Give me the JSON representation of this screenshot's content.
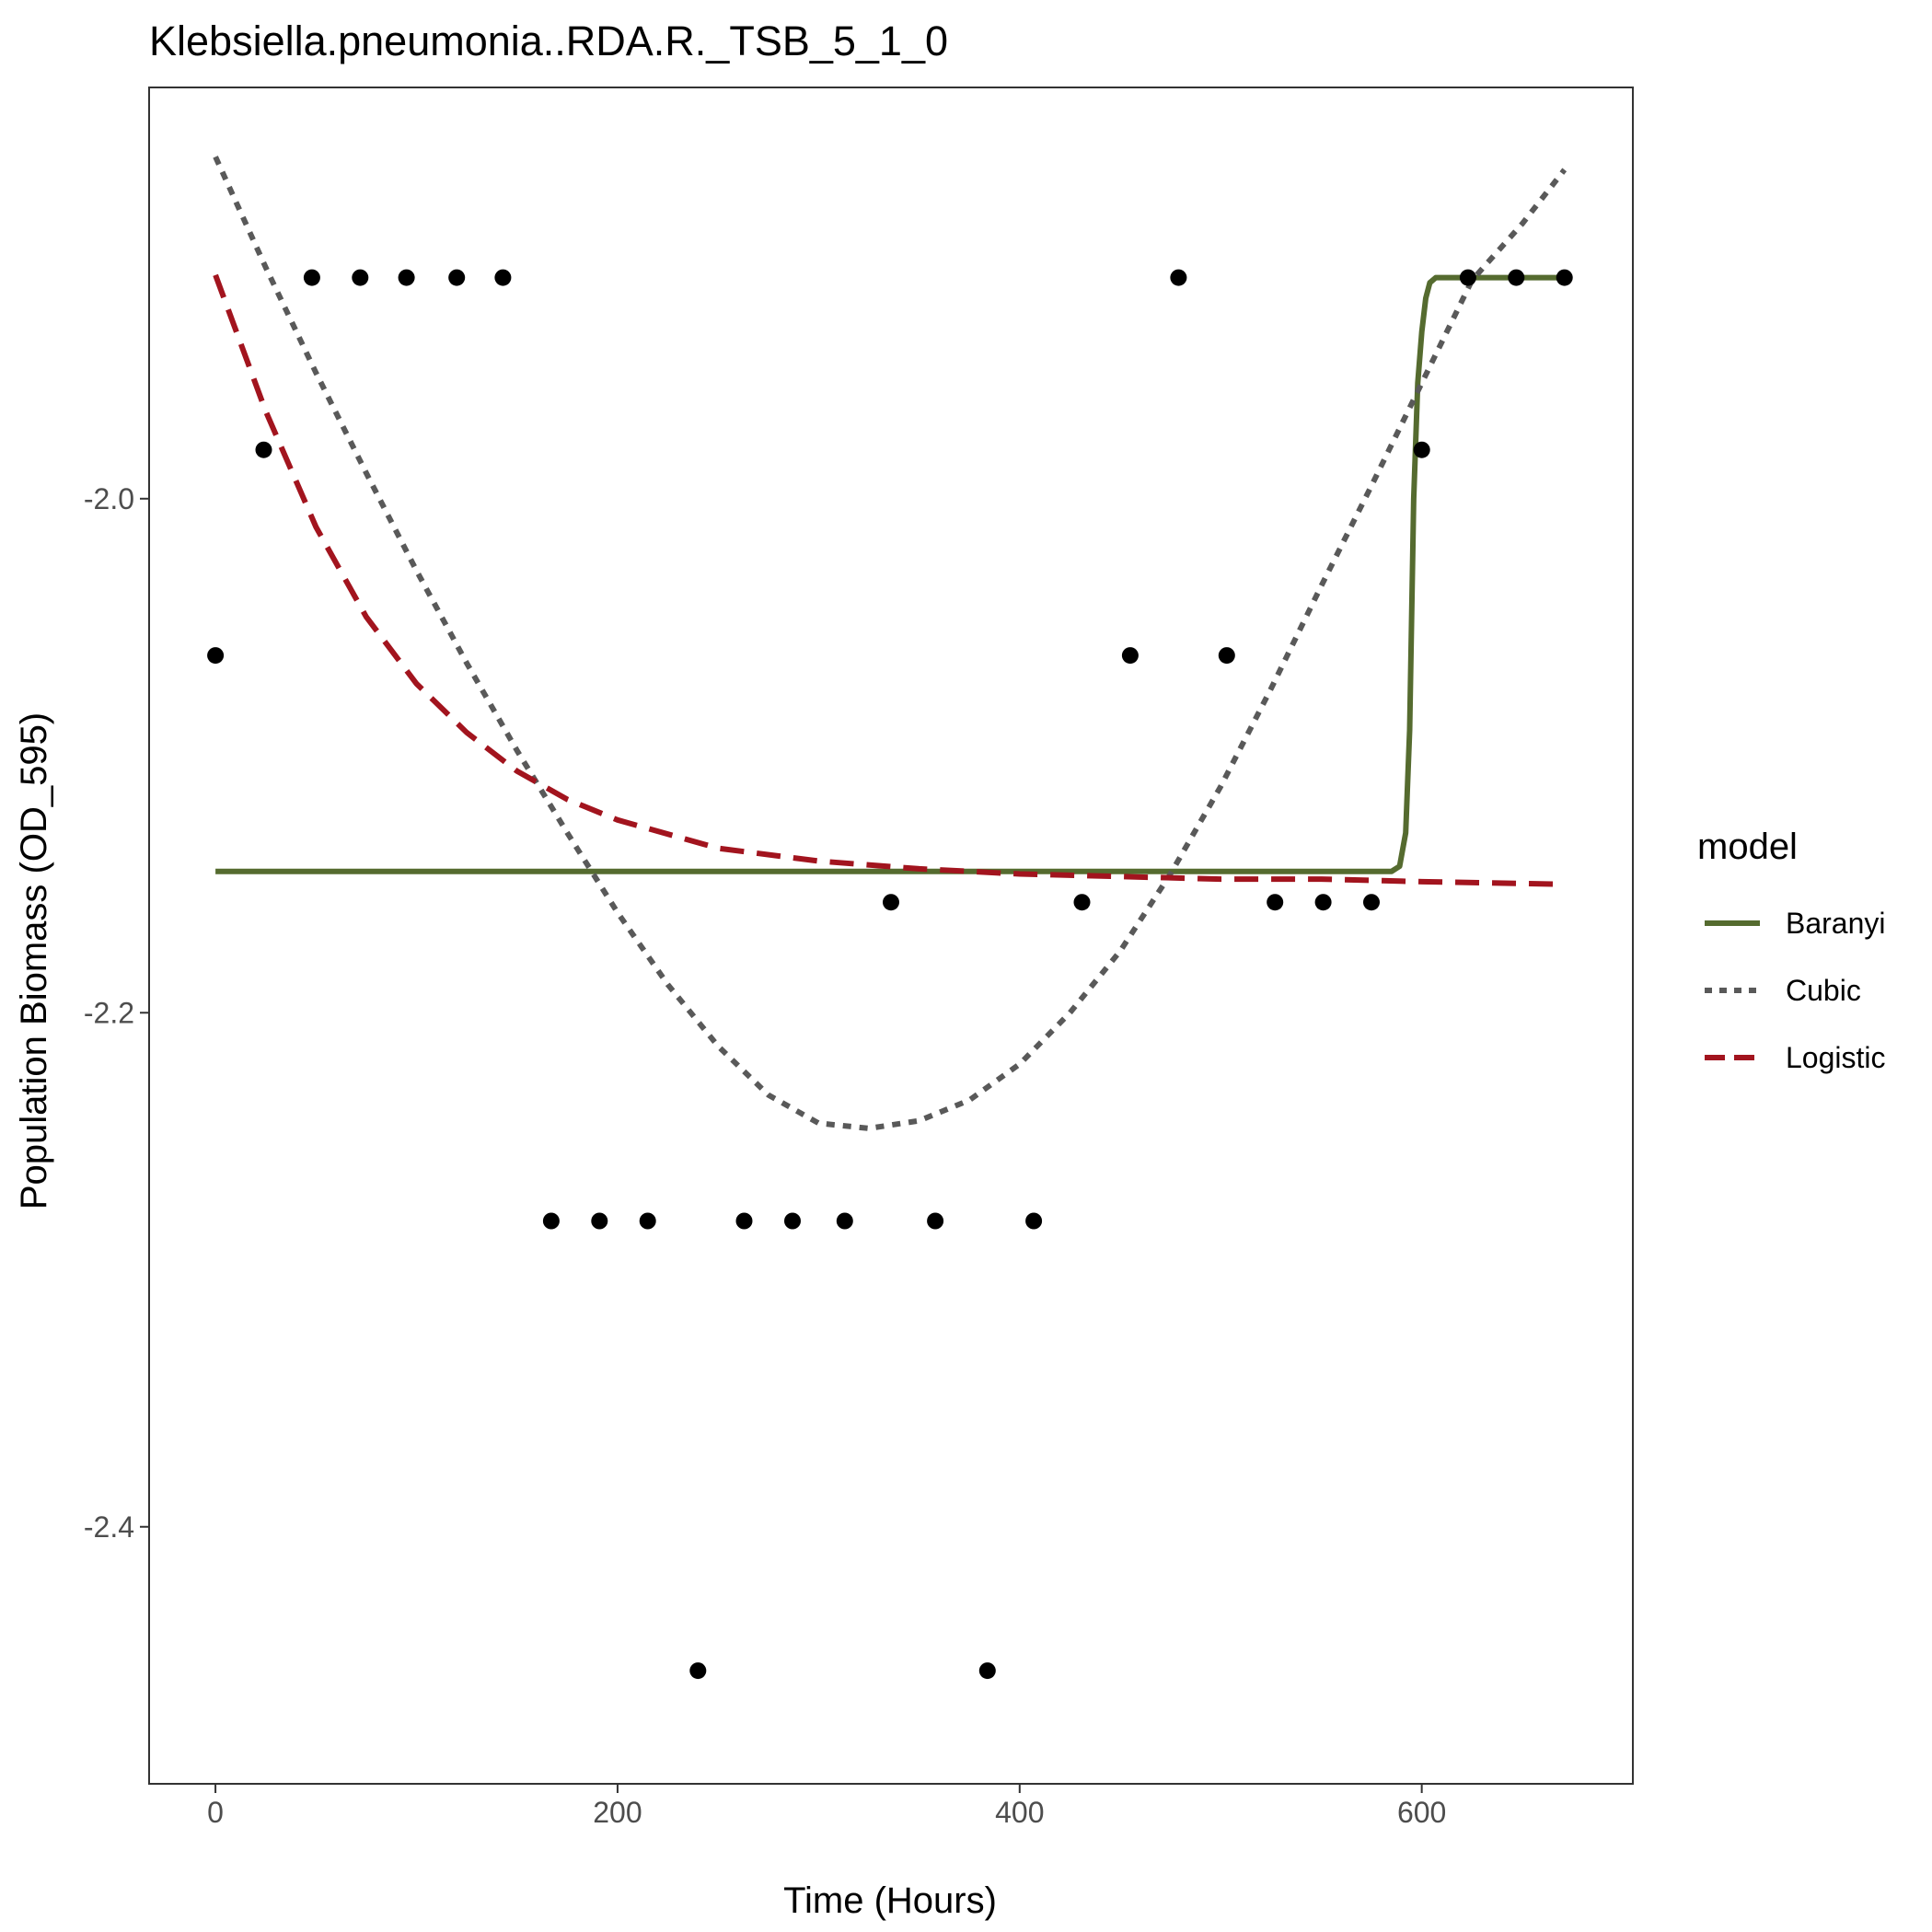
{
  "chart_data": {
    "type": "scatter",
    "title": "Klebsiella.pneumonia..RDA.R._TSB_5_1_0",
    "xlabel": "Time (Hours)",
    "ylabel": "Population Biomass (OD_595)",
    "xlim": [
      -33,
      705
    ],
    "ylim": [
      -2.5,
      -1.84
    ],
    "x_ticks": [
      0,
      200,
      400,
      600
    ],
    "x_tick_labels": [
      "0",
      "200",
      "400",
      "600"
    ],
    "y_ticks": [
      -2.4,
      -2.2,
      -2.0
    ],
    "y_tick_labels": [
      "-2.4",
      "-2.2",
      "-2.0"
    ],
    "grid": false,
    "legend": {
      "title": "model",
      "placement": "right"
    },
    "points": {
      "x": [
        0,
        24,
        48,
        72,
        95,
        120,
        143,
        167,
        191,
        215,
        240,
        263,
        287,
        313,
        336,
        358,
        384,
        407,
        431,
        455,
        479,
        503,
        527,
        551,
        575,
        600,
        623,
        647,
        671
      ],
      "y": [
        -2.061,
        -1.981,
        -1.914,
        -1.914,
        -1.914,
        -1.914,
        -1.914,
        -2.281,
        -2.281,
        -2.281,
        -2.456,
        -2.281,
        -2.281,
        -2.281,
        -2.157,
        -2.281,
        -2.456,
        -2.281,
        -2.157,
        -2.061,
        -1.914,
        -2.061,
        -2.157,
        -2.157,
        -2.157,
        -1.981,
        -1.914,
        -1.914,
        -1.914
      ]
    },
    "series": [
      {
        "name": "Baranyi",
        "color": "#556b2f",
        "dash": "solid",
        "x": [
          0,
          585,
          589,
          592,
          594,
          596,
          598,
          600,
          602,
          604,
          607,
          612,
          620,
          640,
          671
        ],
        "y": [
          -2.145,
          -2.145,
          -2.143,
          -2.13,
          -2.09,
          -2.0,
          -1.955,
          -1.935,
          -1.922,
          -1.916,
          -1.914,
          -1.914,
          -1.914,
          -1.914,
          -1.914
        ]
      },
      {
        "name": "Cubic",
        "color": "#595959",
        "dash": "dotted",
        "x": [
          0,
          25,
          50,
          75,
          100,
          125,
          150,
          175,
          200,
          225,
          250,
          275,
          300,
          325,
          350,
          375,
          400,
          425,
          450,
          475,
          500,
          525,
          550,
          575,
          600,
          625,
          650,
          671
        ],
        "y": [
          -1.867,
          -1.91,
          -1.951,
          -1.99,
          -2.028,
          -2.064,
          -2.098,
          -2.13,
          -2.161,
          -2.189,
          -2.213,
          -2.232,
          -2.243,
          -2.245,
          -2.242,
          -2.234,
          -2.22,
          -2.2,
          -2.176,
          -2.146,
          -2.112,
          -2.074,
          -2.034,
          -1.995,
          -1.955,
          -1.915,
          -1.893,
          -1.872
        ]
      },
      {
        "name": "Logistic",
        "color": "#a2141e",
        "dash": "dashed",
        "x": [
          0,
          25,
          50,
          75,
          100,
          125,
          150,
          175,
          200,
          250,
          300,
          350,
          400,
          450,
          500,
          550,
          600,
          671
        ],
        "y": [
          -1.913,
          -1.966,
          -2.011,
          -2.046,
          -2.072,
          -2.091,
          -2.106,
          -2.117,
          -2.125,
          -2.136,
          -2.141,
          -2.144,
          -2.146,
          -2.147,
          -2.148,
          -2.148,
          -2.149,
          -2.15
        ]
      }
    ]
  }
}
